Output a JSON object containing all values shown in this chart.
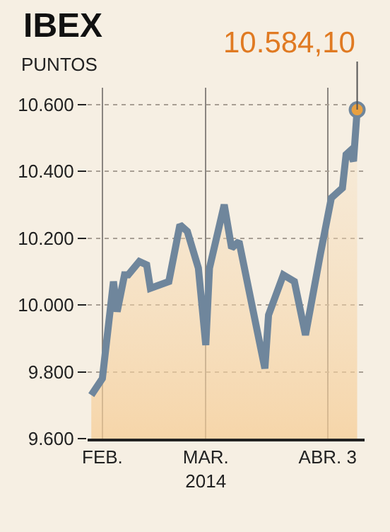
{
  "chart_data": {
    "type": "area",
    "title": "IBEX",
    "ylabel": "PUNTOS",
    "x": [
      "2014-01-29",
      "2014-02-01",
      "2014-02-04",
      "2014-02-05",
      "2014-02-07",
      "2014-02-08",
      "2014-02-11",
      "2014-02-13",
      "2014-02-14",
      "2014-02-19",
      "2014-02-22",
      "2014-02-24",
      "2014-02-27",
      "2014-03-01",
      "2014-03-02",
      "2014-03-06",
      "2014-03-08",
      "2014-03-10",
      "2014-03-17",
      "2014-03-18",
      "2014-03-22",
      "2014-03-25",
      "2014-03-28",
      "2014-04-01",
      "2014-04-04",
      "2014-04-05",
      "2014-04-07",
      "2014-04-08",
      "2014-04-09",
      "2014-04-10",
      "2014-04-11"
    ],
    "series": [
      {
        "color": "#6f869c",
        "values": [
          9730,
          9780,
          10070,
          9980,
          10090,
          10090,
          10130,
          10120,
          10050,
          10070,
          10240,
          10220,
          10110,
          9880,
          10110,
          10300,
          10170,
          10190,
          9810,
          9970,
          10090,
          10070,
          9910,
          10150,
          10320,
          10330,
          10350,
          10450,
          10460,
          10430,
          10584.1
        ]
      }
    ],
    "xlim": [
      "2014-01-28",
      "2014-04-13"
    ],
    "xticks": [
      {
        "value": "2014-02-01",
        "label": "FEB."
      },
      {
        "value": "2014-03-01",
        "label": "MAR.\n2014"
      },
      {
        "value": "2014-04-03",
        "label": "ABR. 3"
      }
    ],
    "ylim": [
      9600,
      10650
    ],
    "yticks": [
      {
        "value": 9600,
        "label": "9.600"
      },
      {
        "value": 9800,
        "label": "9.800"
      },
      {
        "value": 10000,
        "label": "10.000"
      },
      {
        "value": 10200,
        "label": "10.200"
      },
      {
        "value": 10400,
        "label": "10.400"
      },
      {
        "value": 10600,
        "label": "10.600"
      }
    ],
    "grid": true,
    "line_style": "solid",
    "annotations": [
      {
        "text": "10.584,10",
        "x": "2014-04-11",
        "y": 10584.1
      }
    ]
  }
}
